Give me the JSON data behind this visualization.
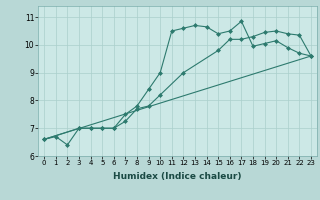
{
  "line1_x": [
    0,
    1,
    2,
    3,
    4,
    5,
    6,
    7,
    8,
    9,
    10,
    11,
    12,
    13,
    14,
    15,
    16,
    17,
    18,
    19,
    20,
    21,
    22,
    23
  ],
  "line1_y": [
    6.6,
    6.7,
    6.4,
    7.0,
    7.0,
    7.0,
    7.0,
    7.5,
    7.8,
    8.4,
    9.0,
    10.5,
    10.6,
    10.7,
    10.65,
    10.4,
    10.5,
    10.85,
    9.95,
    10.05,
    10.15,
    9.9,
    9.7,
    9.6
  ],
  "line2_x": [
    0,
    3,
    4,
    5,
    6,
    7,
    8,
    9,
    10,
    12,
    15,
    16,
    17,
    18,
    19,
    20,
    21,
    22,
    23
  ],
  "line2_y": [
    6.6,
    7.0,
    7.0,
    7.0,
    7.0,
    7.25,
    7.7,
    7.8,
    8.2,
    9.0,
    9.8,
    10.2,
    10.2,
    10.3,
    10.45,
    10.5,
    10.4,
    10.35,
    9.6
  ],
  "line3_x": [
    0,
    23
  ],
  "line3_y": [
    6.6,
    9.6
  ],
  "line_color": "#2d7a6e",
  "bg_color": "#cce8e6",
  "grid_color": "#aacfcc",
  "axis_bg": "#b8d8d6",
  "xlim": [
    -0.5,
    23.5
  ],
  "ylim": [
    6.0,
    11.4
  ],
  "yticks": [
    6,
    7,
    8,
    9,
    10,
    11
  ],
  "xticks": [
    0,
    1,
    2,
    3,
    4,
    5,
    6,
    7,
    8,
    9,
    10,
    11,
    12,
    13,
    14,
    15,
    16,
    17,
    18,
    19,
    20,
    21,
    22,
    23
  ],
  "xlabel": "Humidex (Indice chaleur)",
  "marker": "D",
  "marker_size": 2,
  "linewidth": 0.8,
  "xlabel_fontsize": 6.5,
  "xlabel_fontweight": "bold",
  "xlabel_color": "#1a4a44",
  "tick_fontsize": 5,
  "ytick_fontsize": 5.5
}
